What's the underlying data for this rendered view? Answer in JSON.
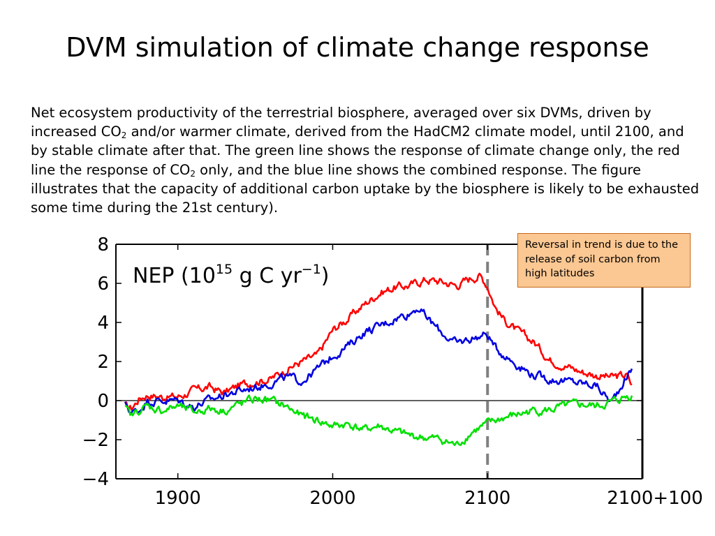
{
  "slide": {
    "title": "DVM simulation of climate change response",
    "caption_parts": {
      "p1": "Net ecosystem productivity of the terrestrial biosphere, averaged over six DVMs, driven by increased CO",
      "sub1": "2",
      "p2": "  and/or warmer climate, derived from the HadCM2 climate model, until 2100, and by stable climate after that. The green line shows the response of climate change only, the red line the response of CO",
      "sub2": "2",
      "p3": " only, and the blue line shows the combined response. The figure illustrates that the capacity of additional carbon uptake by the biosphere is likely to be  exhausted some time during the 21st century)."
    }
  },
  "annotation": {
    "text": "Reversal in trend is due to the release of soil carbon from high latitudes",
    "background": "#fbc792",
    "border": "#c86a1c"
  },
  "chart_data": {
    "type": "line",
    "title": "NEP (10^15 g C yr^-1)",
    "title_parts": {
      "base": "NEP (10",
      "sup1": "15",
      "mid": " g C yr",
      "sup2": "−1",
      "end": ")"
    },
    "xlabel": "",
    "ylabel": "",
    "xlim": [
      1860,
      2200
    ],
    "ylim": [
      -4,
      8
    ],
    "yticks": [
      8,
      6,
      4,
      2,
      0,
      -2,
      -4
    ],
    "ytick_labels": [
      "8",
      "6",
      "4",
      "2",
      "0",
      "−2",
      "−4"
    ],
    "xticks": [
      1900,
      2000,
      2100,
      2200
    ],
    "xtick_labels": [
      "1900",
      "2000",
      "2100",
      "2100+100"
    ],
    "zero_line": true,
    "vertical_marker": {
      "x": 2100,
      "style": "dashed",
      "color": "#808080"
    },
    "grid": false,
    "series": [
      {
        "color": "#ff0000",
        "x": [
          1866,
          1870,
          1875,
          1880,
          1890,
          1900,
          1910,
          1920,
          1930,
          1940,
          1950,
          1960,
          1970,
          1980,
          1990,
          2000,
          2010,
          2020,
          2030,
          2040,
          2050,
          2060,
          2070,
          2080,
          2090,
          2095,
          2100,
          2105,
          2110,
          2120,
          2130,
          2140,
          2150,
          2160,
          2170,
          2180,
          2190,
          2194
        ],
        "y": [
          -0.3,
          -0.4,
          0.1,
          0.3,
          0.2,
          0.2,
          0.5,
          0.7,
          0.4,
          0.8,
          1.0,
          1.1,
          1.6,
          2.0,
          2.3,
          3.6,
          4.2,
          4.9,
          5.5,
          5.8,
          5.9,
          6.2,
          6.1,
          5.9,
          6.3,
          6.4,
          5.9,
          4.8,
          4.2,
          3.5,
          3.0,
          2.1,
          1.8,
          1.5,
          1.3,
          1.2,
          1.3,
          0.6
        ]
      },
      {
        "color": "#0000e0",
        "x": [
          1866,
          1870,
          1875,
          1880,
          1890,
          1900,
          1910,
          1920,
          1930,
          1940,
          1950,
          1960,
          1970,
          1980,
          1990,
          2000,
          2010,
          2020,
          2030,
          2040,
          2050,
          2055,
          2060,
          2070,
          2080,
          2090,
          2100,
          2105,
          2110,
          2120,
          2130,
          2140,
          2150,
          2160,
          2170,
          2180,
          2190,
          2194
        ],
        "y": [
          -0.2,
          -0.6,
          -0.5,
          0.0,
          0.0,
          0.0,
          -0.3,
          0.0,
          0.3,
          0.5,
          0.7,
          0.9,
          1.2,
          1.0,
          1.6,
          2.3,
          2.8,
          3.5,
          3.8,
          4.2,
          4.5,
          4.8,
          4.3,
          3.5,
          2.9,
          3.2,
          3.4,
          2.7,
          2.4,
          1.8,
          1.3,
          1.1,
          1.0,
          0.9,
          0.8,
          -0.1,
          1.3,
          1.6
        ]
      },
      {
        "color": "#00e000",
        "x": [
          1866,
          1870,
          1875,
          1880,
          1890,
          1900,
          1910,
          1920,
          1930,
          1940,
          1950,
          1960,
          1970,
          1980,
          1990,
          2000,
          2010,
          2020,
          2030,
          2040,
          2050,
          2060,
          2070,
          2080,
          2090,
          2100,
          2110,
          2120,
          2130,
          2140,
          2150,
          2160,
          2170,
          2180,
          2190,
          2194
        ],
        "y": [
          -0.4,
          -0.8,
          -0.5,
          -0.3,
          -0.5,
          -0.3,
          -0.6,
          -0.4,
          -0.5,
          -0.2,
          0.1,
          0.0,
          -0.3,
          -0.8,
          -1.0,
          -1.3,
          -1.2,
          -1.5,
          -1.3,
          -1.6,
          -1.8,
          -1.9,
          -2.0,
          -2.3,
          -1.6,
          -1.2,
          -0.9,
          -0.7,
          -0.5,
          -0.5,
          -0.3,
          -0.2,
          -0.3,
          -0.1,
          0.2,
          0.3
        ]
      }
    ]
  }
}
